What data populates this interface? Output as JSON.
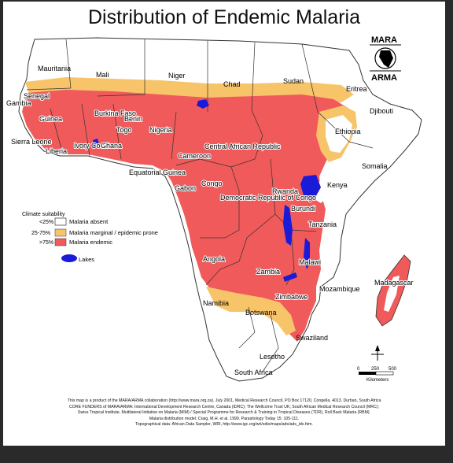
{
  "title": "Distribution of Endemic Malaria",
  "colors": {
    "endemic": "#f05a5a",
    "marginal": "#f7c46a",
    "absent": "#ffffff",
    "lakes": "#1a1ad9",
    "border": "#333333"
  },
  "legend": {
    "heading": "Climate suitability",
    "items": [
      {
        "range": "<25%",
        "label": "Malaria absent",
        "color_key": "absent"
      },
      {
        "range": "25-75%",
        "label": "Malaria marginal / epidemic prone",
        "color_key": "marginal"
      },
      {
        "range": ">75%",
        "label": "Malaria endemic",
        "color_key": "endemic"
      }
    ],
    "lakes_label": "Lakes"
  },
  "logo": {
    "top": "MARA",
    "bottom": "ARMA"
  },
  "scale": {
    "ticks": [
      "0",
      "250",
      "500"
    ],
    "unit": "Kilometers"
  },
  "countries": [
    {
      "name": "Mauritania"
    },
    {
      "name": "Mali"
    },
    {
      "name": "Niger"
    },
    {
      "name": "Chad"
    },
    {
      "name": "Sudan"
    },
    {
      "name": "Eritrea"
    },
    {
      "name": "Senegal"
    },
    {
      "name": "Gambia"
    },
    {
      "name": "Guinea"
    },
    {
      "name": "Burkina Faso"
    },
    {
      "name": "Benin"
    },
    {
      "name": "Togo"
    },
    {
      "name": "Nigeria"
    },
    {
      "name": "Djibouti"
    },
    {
      "name": "Ethiopia"
    },
    {
      "name": "Sierra Leone"
    },
    {
      "name": "Liberia"
    },
    {
      "name": "Ivory Coast"
    },
    {
      "name": "Ghana"
    },
    {
      "name": "Cameroon"
    },
    {
      "name": "Central African Republic"
    },
    {
      "name": "Somalia"
    },
    {
      "name": "Equatorial Guinea"
    },
    {
      "name": "Gabon"
    },
    {
      "name": "Congo"
    },
    {
      "name": "Rwanda"
    },
    {
      "name": "Kenya"
    },
    {
      "name": "Democratic Republic of Congo"
    },
    {
      "name": "Burundi"
    },
    {
      "name": "Tanzania"
    },
    {
      "name": "Angola"
    },
    {
      "name": "Malawi"
    },
    {
      "name": "Zambia"
    },
    {
      "name": "Madagascar"
    },
    {
      "name": "Mozambique"
    },
    {
      "name": "Zimbabwe"
    },
    {
      "name": "Namibia"
    },
    {
      "name": "Botswana"
    },
    {
      "name": "Swaziland"
    },
    {
      "name": "Lesotho"
    },
    {
      "name": "South Africa"
    }
  ],
  "footer": {
    "line1": "This map is a product of the MARA/ARMA collaboration (http://www.mara.org.za). July 2001, Medical Research Council, PO Box 17120, Congella, 4013, Durban, South Africa",
    "line2": "CORE FUNDERS of MARA/ARMA: International Development Research Centre, Canada (IDRC); The Wellcome Trust UK; South African Medical Research Council (MRC);",
    "line3": "Swiss Tropical Institute, Multilateral Initiative on Malaria (MIM) / Special Programme for Research & Training in Tropical Diseases (TDR), Roll Back Malaria (RBM).",
    "line4": "Malaria distribution model: Craig, M.H. et al. 1999. Parasitology Today 15: 105-111.",
    "line5": "Topographical data: African Data Sampler, WRI, http://www.igc.org/wri/sdis/maps/ads/ads_idx.htm."
  }
}
